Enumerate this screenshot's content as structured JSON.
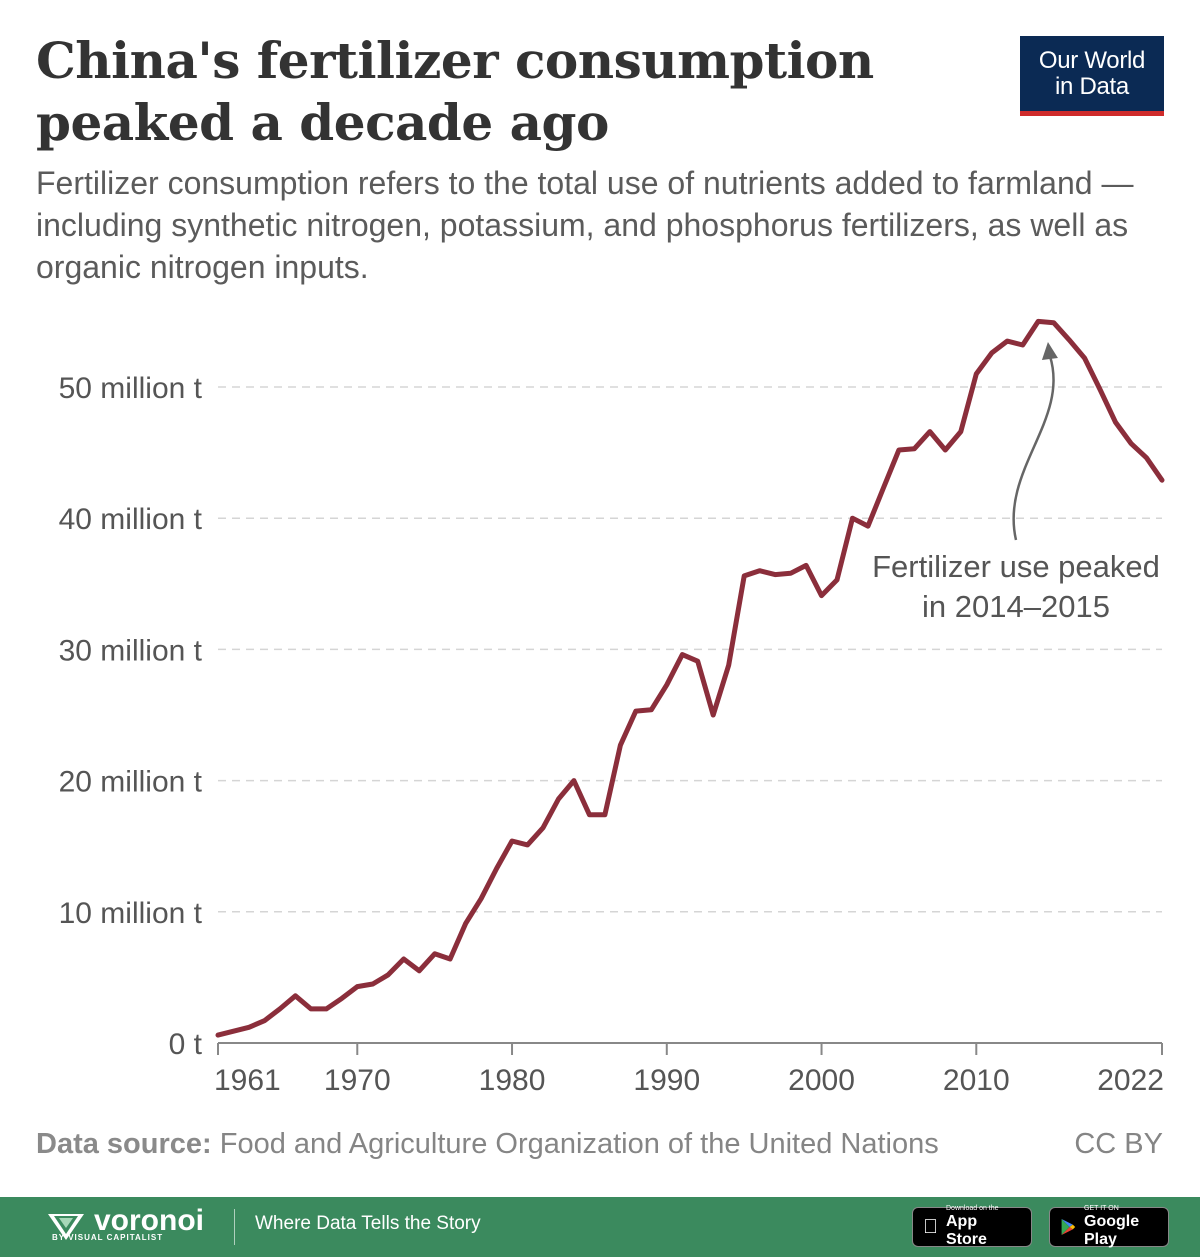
{
  "header": {
    "title": "China's fertilizer consumption peaked a decade ago",
    "subtitle": "Fertilizer consumption refers to the total use of nutrients added to farmland — including synthetic nitrogen, potassium, and phosphorus fertilizers, as well as organic nitrogen inputs.",
    "logo_line1": "Our World",
    "logo_line2": "in Data"
  },
  "footer": {
    "source_label": "Data source:",
    "source_text": "Food and Agriculture Organization of the United Nations",
    "license": "CC BY",
    "brand": "voronoi",
    "brand_sub": "BY VISUAL CAPITALIST",
    "tagline": "Where Data Tells the Story",
    "appstore_small": "Download on the",
    "appstore_big": "App Store",
    "googleplay_small": "GET IT ON",
    "googleplay_big": "Google Play"
  },
  "colors": {
    "line": "#8b2e3b",
    "title": "#333333",
    "footer_bg": "#3b8a5e",
    "logo_bg": "#0b2a54",
    "logo_accent": "#cf2b2b"
  },
  "chart_data": {
    "type": "line",
    "title": "China's fertilizer consumption peaked a decade ago",
    "xlabel": "",
    "ylabel": "",
    "xlim": [
      1961,
      2022
    ],
    "ylim": [
      0,
      55
    ],
    "grid": "horizontal dashed",
    "x_ticks": [
      1961,
      1970,
      1980,
      1990,
      2000,
      2010,
      2022
    ],
    "x_tick_labels": [
      "1961",
      "1970",
      "1980",
      "1990",
      "2000",
      "2010",
      "2022"
    ],
    "y_ticks": [
      0,
      10,
      20,
      30,
      40,
      50
    ],
    "y_tick_labels": [
      "0 t",
      "10 million t",
      "20 million t",
      "30 million t",
      "40 million t",
      "50 million t"
    ],
    "annotation": {
      "line1": "Fertilizer use peaked",
      "line2": "in 2014–2015",
      "x": 2014.5,
      "y": 54.5
    },
    "series": [
      {
        "values": [
          [
            1961,
            0.6
          ],
          [
            1962,
            0.9
          ],
          [
            1963,
            1.2
          ],
          [
            1964,
            1.7
          ],
          [
            1965,
            2.6
          ],
          [
            1966,
            3.6
          ],
          [
            1967,
            2.6
          ],
          [
            1968,
            2.6
          ],
          [
            1969,
            3.4
          ],
          [
            1970,
            4.3
          ],
          [
            1971,
            4.5
          ],
          [
            1972,
            5.2
          ],
          [
            1973,
            6.4
          ],
          [
            1974,
            5.5
          ],
          [
            1975,
            6.8
          ],
          [
            1976,
            6.4
          ],
          [
            1977,
            9.1
          ],
          [
            1978,
            11.0
          ],
          [
            1979,
            13.3
          ],
          [
            1980,
            15.4
          ],
          [
            1981,
            15.1
          ],
          [
            1982,
            16.4
          ],
          [
            1983,
            18.6
          ],
          [
            1984,
            20.0
          ],
          [
            1985,
            17.4
          ],
          [
            1986,
            17.4
          ],
          [
            1987,
            22.7
          ],
          [
            1988,
            25.3
          ],
          [
            1989,
            25.4
          ],
          [
            1990,
            27.3
          ],
          [
            1991,
            29.6
          ],
          [
            1992,
            29.1
          ],
          [
            1993,
            25.0
          ],
          [
            1994,
            28.8
          ],
          [
            1995,
            35.6
          ],
          [
            1996,
            36.0
          ],
          [
            1997,
            35.7
          ],
          [
            1998,
            35.8
          ],
          [
            1999,
            36.4
          ],
          [
            2000,
            34.1
          ],
          [
            2001,
            35.3
          ],
          [
            2002,
            40.0
          ],
          [
            2003,
            39.4
          ],
          [
            2004,
            42.3
          ],
          [
            2005,
            45.2
          ],
          [
            2006,
            45.3
          ],
          [
            2007,
            46.6
          ],
          [
            2008,
            45.2
          ],
          [
            2009,
            46.6
          ],
          [
            2010,
            51.0
          ],
          [
            2011,
            52.6
          ],
          [
            2012,
            53.5
          ],
          [
            2013,
            53.2
          ],
          [
            2014,
            55.0
          ],
          [
            2015,
            54.9
          ],
          [
            2016,
            53.6
          ],
          [
            2017,
            52.2
          ],
          [
            2018,
            49.8
          ],
          [
            2019,
            47.3
          ],
          [
            2020,
            45.7
          ],
          [
            2021,
            44.6
          ],
          [
            2022,
            42.9
          ]
        ]
      }
    ]
  }
}
